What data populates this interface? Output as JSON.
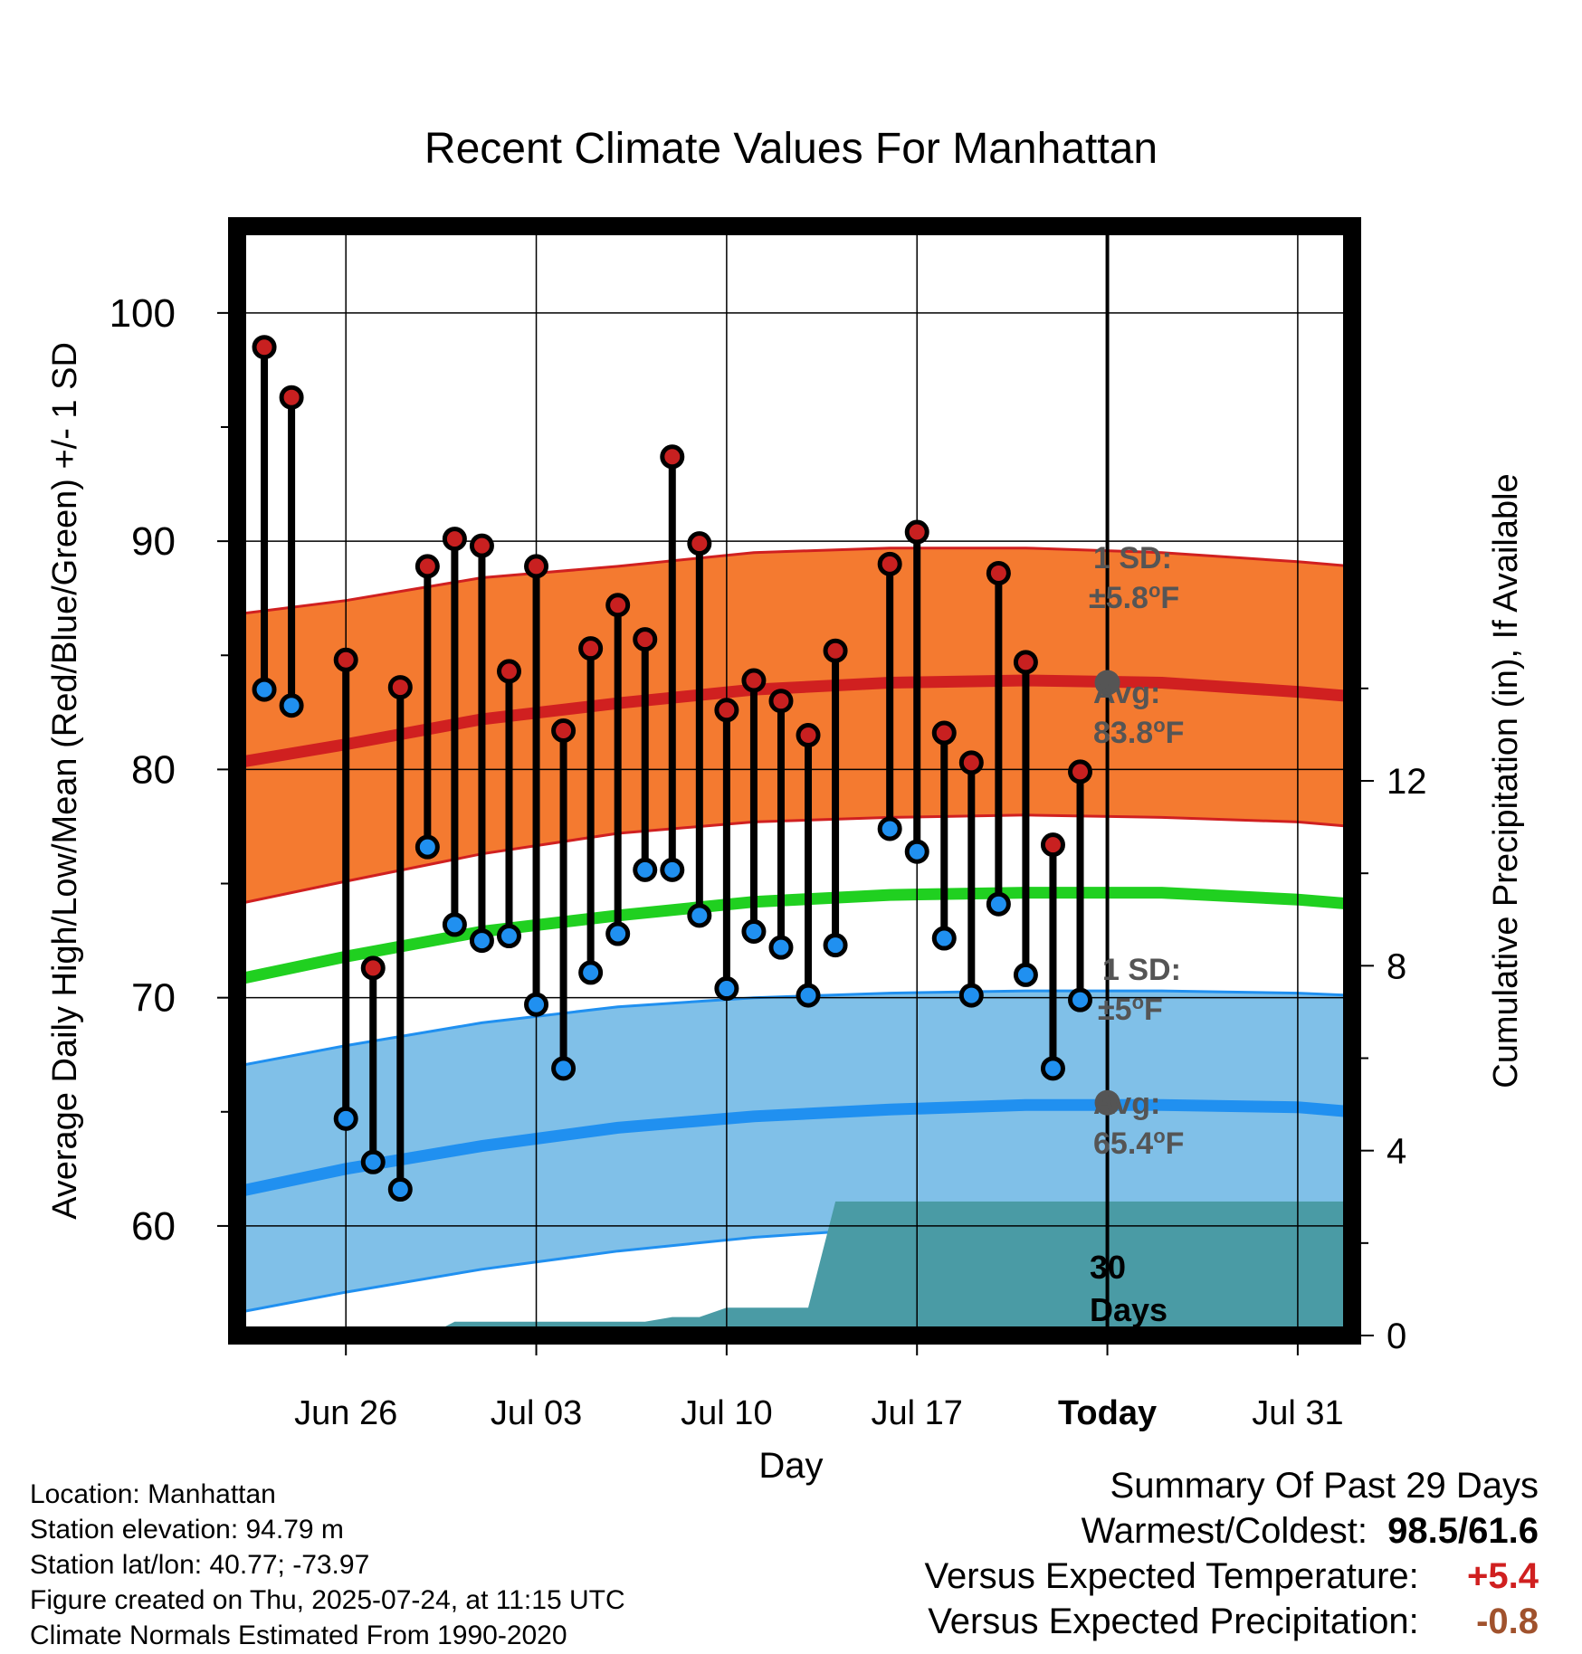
{
  "chart_data": {
    "type": "line",
    "title": "Recent Climate Values For Manhattan",
    "xlabel": "Day",
    "ylabel": "Average Daily High/Low/Mean (Red/Blue/Green) +/- 1 SD",
    "y2label": "Cumulative Precipitation (in), If Available",
    "x_tick_labels": [
      "Jun 26",
      "Jul 03",
      "Jul 10",
      "Jul 17",
      "Today",
      "Jul 31"
    ],
    "x_tick_days": [
      "2025-06-26",
      "2025-07-03",
      "2025-07-10",
      "2025-07-17",
      "2025-07-24",
      "2025-07-31"
    ],
    "xlim": [
      "2025-06-22",
      "2025-08-02"
    ],
    "today": "2025-07-24",
    "ylim": [
      55.2,
      103.8
    ],
    "y_ticks": [
      60,
      70,
      80,
      90,
      100
    ],
    "y2lim": [
      0,
      24
    ],
    "y2_ticks": [
      0,
      4,
      8,
      12
    ],
    "grid": true,
    "normal_high": {
      "color": "#d02020",
      "band_color": "#f47a30",
      "days": [
        "2025-06-22",
        "2025-06-26",
        "2025-07-01",
        "2025-07-06",
        "2025-07-11",
        "2025-07-16",
        "2025-07-21",
        "2025-07-26",
        "2025-07-31",
        "2025-08-02"
      ],
      "mean": [
        80.3,
        81.1,
        82.2,
        82.9,
        83.5,
        83.8,
        83.9,
        83.8,
        83.4,
        83.2
      ],
      "upper": [
        86.8,
        87.4,
        88.4,
        88.9,
        89.5,
        89.7,
        89.7,
        89.5,
        89.1,
        88.9
      ],
      "lower": [
        74.1,
        75.1,
        76.3,
        77.2,
        77.7,
        77.9,
        78.0,
        77.9,
        77.7,
        77.5
      ]
    },
    "normal_low": {
      "color": "#2090f0",
      "band_color": "#80c0e8",
      "days": [
        "2025-06-22",
        "2025-06-26",
        "2025-07-01",
        "2025-07-06",
        "2025-07-11",
        "2025-07-16",
        "2025-07-21",
        "2025-07-26",
        "2025-07-31",
        "2025-08-02"
      ],
      "mean": [
        61.5,
        62.5,
        63.5,
        64.3,
        64.8,
        65.1,
        65.3,
        65.3,
        65.2,
        65.0
      ],
      "upper": [
        67.0,
        67.9,
        68.9,
        69.6,
        70.0,
        70.2,
        70.3,
        70.3,
        70.2,
        70.1
      ],
      "lower": [
        56.2,
        57.1,
        58.1,
        58.9,
        59.5,
        59.9,
        60.2,
        60.3,
        60.2,
        60.0
      ]
    },
    "normal_mean": {
      "color": "#20d020",
      "days": [
        "2025-06-22",
        "2025-06-26",
        "2025-07-01",
        "2025-07-06",
        "2025-07-11",
        "2025-07-16",
        "2025-07-21",
        "2025-07-26",
        "2025-07-31",
        "2025-08-02"
      ],
      "values": [
        70.8,
        71.8,
        72.9,
        73.6,
        74.2,
        74.5,
        74.6,
        74.6,
        74.3,
        74.1
      ]
    },
    "series": [
      {
        "name": "High",
        "color": "#c82020",
        "days": [
          "2025-06-23",
          "2025-06-24",
          "2025-06-26",
          "2025-06-27",
          "2025-06-28",
          "2025-06-29",
          "2025-06-30",
          "2025-07-01",
          "2025-07-02",
          "2025-07-03",
          "2025-07-04",
          "2025-07-05",
          "2025-07-06",
          "2025-07-07",
          "2025-07-08",
          "2025-07-09",
          "2025-07-10",
          "2025-07-11",
          "2025-07-12",
          "2025-07-13",
          "2025-07-14",
          "2025-07-16",
          "2025-07-17",
          "2025-07-18",
          "2025-07-19",
          "2025-07-20",
          "2025-07-21",
          "2025-07-22",
          "2025-07-23"
        ],
        "values": [
          98.5,
          96.3,
          84.8,
          71.3,
          83.6,
          88.9,
          90.1,
          89.8,
          84.3,
          88.9,
          81.7,
          85.3,
          87.2,
          85.7,
          93.7,
          89.9,
          82.6,
          83.9,
          83.0,
          81.5,
          85.2,
          89.0,
          90.4,
          81.6,
          80.3,
          88.6,
          84.7,
          76.7,
          79.9
        ]
      },
      {
        "name": "Low",
        "color": "#2090f0",
        "days": [
          "2025-06-23",
          "2025-06-24",
          "2025-06-26",
          "2025-06-27",
          "2025-06-28",
          "2025-06-29",
          "2025-06-30",
          "2025-07-01",
          "2025-07-02",
          "2025-07-03",
          "2025-07-04",
          "2025-07-05",
          "2025-07-06",
          "2025-07-07",
          "2025-07-08",
          "2025-07-09",
          "2025-07-10",
          "2025-07-11",
          "2025-07-12",
          "2025-07-13",
          "2025-07-14",
          "2025-07-16",
          "2025-07-17",
          "2025-07-18",
          "2025-07-19",
          "2025-07-20",
          "2025-07-21",
          "2025-07-22",
          "2025-07-23"
        ],
        "values": [
          83.5,
          82.8,
          64.7,
          62.8,
          61.6,
          76.6,
          73.2,
          72.5,
          72.7,
          69.7,
          66.9,
          71.1,
          72.8,
          75.6,
          75.6,
          73.6,
          70.4,
          72.9,
          72.2,
          70.1,
          72.3,
          77.4,
          76.4,
          72.6,
          70.1,
          74.1,
          71.0,
          66.9,
          69.9
        ]
      },
      {
        "name": "Cumulative Precipitation",
        "color": "#4a9ba5",
        "axis": "right",
        "days": [
          "2025-06-22",
          "2025-06-26",
          "2025-06-27",
          "2025-06-28",
          "2025-06-29",
          "2025-06-30",
          "2025-07-01",
          "2025-07-02",
          "2025-07-03",
          "2025-07-04",
          "2025-07-05",
          "2025-07-06",
          "2025-07-07",
          "2025-07-08",
          "2025-07-09",
          "2025-07-10",
          "2025-07-11",
          "2025-07-12",
          "2025-07-13",
          "2025-07-14",
          "2025-07-15",
          "2025-07-20",
          "2025-07-24",
          "2025-07-31",
          "2025-08-02"
        ],
        "values": [
          0,
          0,
          0,
          0,
          0,
          0.3,
          0.3,
          0.3,
          0.3,
          0.3,
          0.3,
          0.3,
          0.3,
          0.4,
          0.4,
          0.6,
          0.6,
          0.6,
          0.6,
          2.9,
          2.9,
          2.9,
          2.9,
          2.9,
          2.9
        ]
      }
    ],
    "annotations": {
      "high_sd_label": "1 SD:",
      "high_sd_value": "±5.8",
      "high_avg_label": "Avg:",
      "high_avg_value": "83.8",
      "high_avg_marker": 83.8,
      "low_sd_label": "1 SD:",
      "low_sd_value": "±5",
      "low_avg_label": "Avg:",
      "low_avg_value": "65.4",
      "low_avg_marker": 65.4,
      "degree_symbol": "o",
      "unit": "F",
      "label_color": "#555555",
      "window_line1": "30",
      "window_line2": "Days"
    }
  },
  "footer": {
    "location": "Location: Manhattan",
    "elevation": "Station elevation: 94.79 m",
    "latlon": "Station lat/lon: 40.77; -73.97",
    "created": "Figure created on Thu, 2025-07-24, at 11:15 UTC",
    "normals": "Climate Normals Estimated From 1990-2020"
  },
  "summary": {
    "title": "Summary Of Past 29 Days",
    "warm_cold_label": "Warmest/Coldest:",
    "warm_cold_value": "98.5/61.6",
    "temp_label": "Versus Expected Temperature:",
    "temp_value": "+5.4",
    "temp_color": "#d02020",
    "precip_label": "Versus Expected Precipitation:",
    "precip_value": "-0.8",
    "precip_color": "#a0522d"
  }
}
